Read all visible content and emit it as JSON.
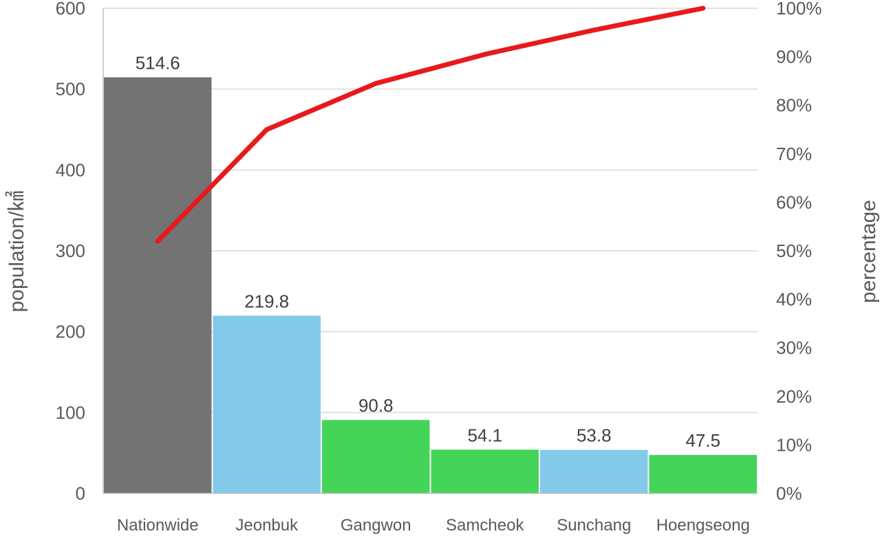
{
  "chart_data": {
    "type": "bar",
    "categories": [
      "Nationwide",
      "Jeonbuk",
      "Gangwon",
      "Samcheok",
      "Sunchang",
      "Hoengseong"
    ],
    "series": [
      {
        "type": "bar",
        "axis": "left",
        "values": [
          514.6,
          219.8,
          90.8,
          54.1,
          53.8,
          47.5
        ],
        "colors": [
          "#737373",
          "#83c9ea",
          "#45d45a",
          "#45d45a",
          "#83c9ea",
          "#45d45a"
        ],
        "data_labels": [
          "514.6",
          "219.8",
          "90.8",
          "54.1",
          "53.8",
          "47.5"
        ]
      },
      {
        "type": "line",
        "axis": "right",
        "values": [
          0.52,
          0.75,
          0.845,
          0.905,
          0.955,
          1.0
        ],
        "color": "#e8191c"
      }
    ],
    "ylabel": "population/㎢",
    "y2label": "percentage",
    "ylim": [
      0,
      600
    ],
    "yticks": [
      0,
      100,
      200,
      300,
      400,
      500,
      600
    ],
    "ytick_labels": [
      "0",
      "100",
      "200",
      "300",
      "400",
      "500",
      "600"
    ],
    "y2lim": [
      0,
      1
    ],
    "y2ticks": [
      0,
      0.1,
      0.2,
      0.3,
      0.4,
      0.5,
      0.6,
      0.7,
      0.8,
      0.9,
      1.0
    ],
    "y2tick_labels": [
      "0%",
      "10%",
      "20%",
      "30%",
      "40%",
      "50%",
      "60%",
      "70%",
      "80%",
      "90%",
      "100%"
    ],
    "grid": true,
    "legend": "none"
  }
}
